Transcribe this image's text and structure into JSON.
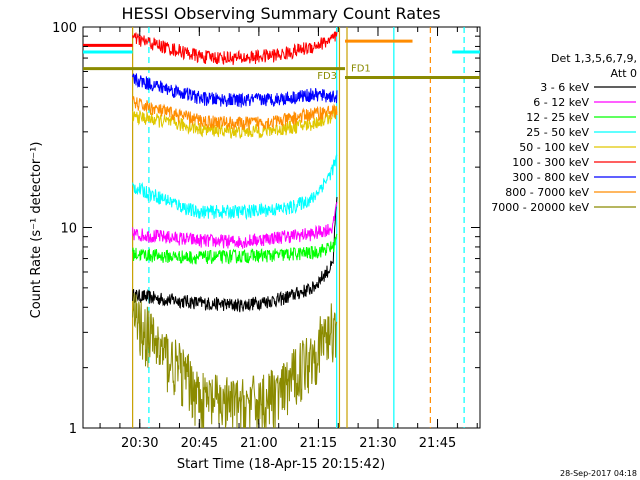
{
  "chart_data": {
    "type": "line",
    "title": "HESSI Observing Summary Count Rates",
    "xlabel": "Start Time (18-Apr-15 20:15:42)",
    "ylabel": "Count Rate (s⁻¹ detector⁻¹)",
    "y_scale": "log",
    "ylim": [
      1,
      100
    ],
    "y_ticks": [
      {
        "value": 1,
        "label": "1"
      },
      {
        "value": 10,
        "label": "10"
      },
      {
        "value": 100,
        "label": "100"
      }
    ],
    "x_range_minutes": [
      0,
      100
    ],
    "x_ticks": [
      {
        "minutes": 14.3,
        "label": "20:30"
      },
      {
        "minutes": 29.3,
        "label": "20:45"
      },
      {
        "minutes": 44.3,
        "label": "21:00"
      },
      {
        "minutes": 59.3,
        "label": "21:15"
      },
      {
        "minutes": 74.3,
        "label": "21:30"
      },
      {
        "minutes": 89.3,
        "label": "21:45"
      }
    ],
    "legend": {
      "title_line1": "Det 1,3,5,6,7,9,",
      "title_line2": "Att 0",
      "placement": "right"
    },
    "series": [
      {
        "name": "3 - 6 keV",
        "color": "#000000",
        "x": [
          12.5,
          20,
          30,
          40,
          50,
          58,
          63,
          64
        ],
        "y": [
          4.6,
          4.4,
          4.2,
          4.1,
          4.4,
          5,
          6.5,
          14
        ]
      },
      {
        "name": "6 - 12 keV",
        "color": "#ff00ff",
        "x": [
          12.5,
          20,
          30,
          40,
          50,
          58,
          63,
          64
        ],
        "y": [
          9.3,
          9,
          8.6,
          8.5,
          9,
          9.3,
          10,
          14
        ]
      },
      {
        "name": "12 - 25 keV",
        "color": "#00ff00",
        "x": [
          12.5,
          20,
          30,
          40,
          50,
          58,
          63,
          64
        ],
        "y": [
          7.4,
          7.2,
          7.1,
          7.2,
          7.3,
          7.5,
          8,
          9
        ]
      },
      {
        "name": "25 - 50 keV",
        "color": "#00ffff",
        "x": [
          12.5,
          16,
          20,
          28,
          40,
          52,
          58,
          62,
          64
        ],
        "y": [
          16,
          15,
          14,
          12,
          12,
          12.5,
          14,
          18,
          22
        ]
      },
      {
        "name": "50 - 100 keV",
        "color": "#e0c800",
        "x": [
          12.5,
          20,
          30,
          40,
          50,
          58,
          63,
          64
        ],
        "y": [
          36,
          34,
          31,
          30,
          31,
          33,
          36,
          40
        ]
      },
      {
        "name": "100 - 300 keV",
        "color": "#ff0000",
        "x": [
          12.5,
          20,
          30,
          40,
          50,
          58,
          63,
          64
        ],
        "y": [
          88,
          80,
          71,
          70,
          73,
          80,
          87,
          90
        ]
      },
      {
        "name": "300 - 800 keV",
        "color": "#0000ff",
        "x": [
          12.5,
          20,
          30,
          40,
          50,
          58,
          63,
          64
        ],
        "y": [
          55,
          50,
          44,
          43,
          44,
          46,
          45,
          45
        ]
      },
      {
        "name": "800 - 7000 keV",
        "color": "#ff8c00",
        "x": [
          12.5,
          20,
          30,
          40,
          50,
          58,
          63,
          64
        ],
        "y": [
          42,
          38,
          34,
          33,
          34,
          37,
          38,
          38
        ]
      },
      {
        "name": "7000 - 20000 keV",
        "color": "#8b8b00",
        "x": [
          12.5,
          20,
          30,
          40,
          50,
          58,
          63,
          64
        ],
        "y": [
          3.6,
          2.4,
          1.4,
          1.3,
          1.5,
          2.4,
          3.2,
          3.6
        ]
      }
    ],
    "segments": [
      {
        "color": "#00ffff",
        "x": [
          0,
          12.5
        ],
        "y": 75
      },
      {
        "color": "#00ffff",
        "x": [
          93,
          100
        ],
        "y": 75
      },
      {
        "color": "#ff8c00",
        "x": [
          66,
          83
        ],
        "y": 85
      },
      {
        "color": "#ff0000",
        "x": [
          0,
          12.5
        ],
        "y": 81
      },
      {
        "color": "#8b8b00",
        "x": [
          0,
          66
        ],
        "y": 62
      },
      {
        "color": "#8b8b00",
        "x": [
          66,
          100
        ],
        "y": 56
      }
    ],
    "vertical_lines": [
      {
        "minutes": 12.5,
        "color": "#c8a000",
        "style": "solid"
      },
      {
        "minutes": 16.6,
        "color": "#00ffff",
        "style": "dashed"
      },
      {
        "minutes": 63.9,
        "color": "#00ffff",
        "style": "solid"
      },
      {
        "minutes": 64.6,
        "color": "#c8a000",
        "style": "solid"
      },
      {
        "minutes": 66.5,
        "color": "#c8a000",
        "style": "solid"
      },
      {
        "minutes": 78.3,
        "color": "#00ffff",
        "style": "solid"
      },
      {
        "minutes": 87.5,
        "color": "#ff8c00",
        "style": "dashed"
      },
      {
        "minutes": 96.0,
        "color": "#00ffff",
        "style": "dashed"
      }
    ],
    "annotations": [
      {
        "text": "FD3",
        "minutes": 59.0,
        "y": 55,
        "color": "#8b8b00"
      },
      {
        "text": "FD1",
        "minutes": 67.5,
        "y": 60,
        "color": "#8b8b00"
      }
    ],
    "grid": false,
    "footer_date": "28-Sep-2017 04:18"
  }
}
